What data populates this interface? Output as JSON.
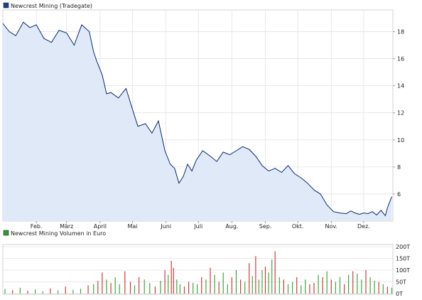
{
  "price_chart": {
    "legend_label": "Newcrest Mining (Tradegate)",
    "legend_color": "#1f3f8f",
    "line_color": "#0a2a6e",
    "area_color": "#dfe9f8",
    "grid_color": "#e2e2e2",
    "chart_data": {
      "type": "area",
      "ylim": [
        4.0,
        19.6
      ],
      "y_ticks": [
        6,
        8,
        10,
        12,
        14,
        16,
        18
      ],
      "x_tick_labels": [
        "Feb.",
        "März",
        "April",
        "Mai",
        "Juni",
        "Juli",
        "Aug.",
        "Sep.",
        "Okt.",
        "Nov.",
        "Dez."
      ],
      "x_tick_days": [
        31,
        59,
        90,
        120,
        151,
        181,
        212,
        243,
        273,
        304,
        334
      ],
      "x_range_days": [
        0,
        361
      ],
      "series": [
        {
          "name": "Newcrest Mining (Tradegate)",
          "x_days": [
            0,
            6,
            12,
            19,
            25,
            31,
            38,
            45,
            52,
            59,
            66,
            73,
            80,
            84,
            87,
            92,
            96,
            100,
            107,
            114,
            121,
            125,
            132,
            138,
            144,
            150,
            155,
            159,
            163,
            167,
            171,
            175,
            179,
            185,
            192,
            198,
            204,
            210,
            216,
            222,
            228,
            234,
            240,
            246,
            252,
            258,
            264,
            270,
            276,
            282,
            288,
            294,
            300,
            306,
            312,
            318,
            322,
            326,
            330,
            334,
            338,
            342,
            346,
            350,
            354,
            356,
            360
          ],
          "values": [
            18.6,
            18.0,
            17.7,
            18.7,
            18.3,
            18.5,
            17.5,
            17.2,
            18.1,
            17.9,
            17.0,
            18.5,
            18.0,
            16.5,
            15.8,
            14.8,
            13.4,
            13.5,
            13.1,
            13.8,
            12.0,
            11.0,
            11.2,
            10.5,
            11.4,
            9.2,
            8.2,
            7.9,
            6.8,
            7.3,
            8.2,
            7.7,
            8.5,
            9.2,
            8.8,
            8.4,
            9.1,
            8.9,
            9.2,
            9.5,
            9.3,
            8.8,
            8.1,
            7.7,
            7.9,
            7.6,
            8.1,
            7.5,
            7.2,
            6.8,
            6.3,
            6.0,
            5.2,
            4.7,
            4.6,
            4.55,
            4.75,
            4.6,
            4.5,
            4.6,
            4.55,
            4.7,
            4.45,
            4.8,
            4.4,
            5.0,
            5.8
          ]
        }
      ]
    }
  },
  "volume_chart": {
    "legend_label": "Newcrest Mining Volumen in Euro",
    "legend_color": "#2f9a2f",
    "up_color": "#3aaa3a",
    "down_color": "#d23a3a",
    "chart_data": {
      "type": "bar",
      "ylim": [
        0,
        200
      ],
      "y_ticks": [
        0,
        50,
        100,
        150,
        200
      ],
      "y_tick_labels": [
        "0T",
        "50T",
        "100T",
        "150T",
        "200T"
      ],
      "unit": "T",
      "x_range_days": [
        0,
        361
      ],
      "x_days": [
        2,
        9,
        16,
        23,
        30,
        37,
        44,
        51,
        58,
        65,
        72,
        79,
        84,
        88,
        92,
        96,
        100,
        104,
        108,
        113,
        118,
        122,
        126,
        131,
        136,
        141,
        146,
        150,
        153,
        156,
        158,
        161,
        164,
        168,
        172,
        176,
        180,
        184,
        188,
        192,
        196,
        200,
        204,
        208,
        212,
        216,
        220,
        224,
        228,
        231,
        234,
        237,
        240,
        243,
        246,
        249,
        252,
        256,
        260,
        264,
        268,
        272,
        276,
        280,
        284,
        288,
        292,
        296,
        300,
        304,
        308,
        312,
        316,
        320,
        324,
        328,
        332,
        336,
        340,
        344,
        348,
        352,
        356,
        360
      ],
      "values": [
        20,
        15,
        25,
        12,
        18,
        10,
        22,
        14,
        30,
        16,
        20,
        35,
        40,
        55,
        90,
        60,
        45,
        70,
        40,
        95,
        50,
        35,
        70,
        60,
        45,
        30,
        55,
        100,
        80,
        140,
        110,
        60,
        40,
        30,
        50,
        45,
        40,
        70,
        60,
        110,
        80,
        50,
        90,
        40,
        70,
        100,
        60,
        50,
        130,
        75,
        160,
        60,
        100,
        115,
        90,
        145,
        180,
        70,
        60,
        40,
        50,
        70,
        35,
        60,
        40,
        45,
        80,
        70,
        95,
        60,
        50,
        70,
        40,
        80,
        95,
        85,
        60,
        100,
        70,
        55,
        50,
        40,
        30,
        25
      ],
      "direction": [
        "up",
        "down",
        "up",
        "down",
        "up",
        "up",
        "down",
        "up",
        "down",
        "up",
        "up",
        "down",
        "up",
        "down",
        "down",
        "up",
        "down",
        "up",
        "up",
        "down",
        "down",
        "up",
        "down",
        "up",
        "up",
        "down",
        "up",
        "down",
        "up",
        "down",
        "down",
        "up",
        "up",
        "down",
        "down",
        "up",
        "up",
        "down",
        "up",
        "down",
        "up",
        "down",
        "up",
        "up",
        "down",
        "up",
        "down",
        "up",
        "down",
        "up",
        "down",
        "up",
        "up",
        "down",
        "up",
        "up",
        "down",
        "up",
        "down",
        "up",
        "up",
        "down",
        "up",
        "up",
        "down",
        "down",
        "up",
        "down",
        "up",
        "down",
        "up",
        "up",
        "down",
        "up",
        "down",
        "up",
        "up",
        "down",
        "up",
        "up",
        "down",
        "up",
        "down",
        "up"
      ]
    }
  }
}
